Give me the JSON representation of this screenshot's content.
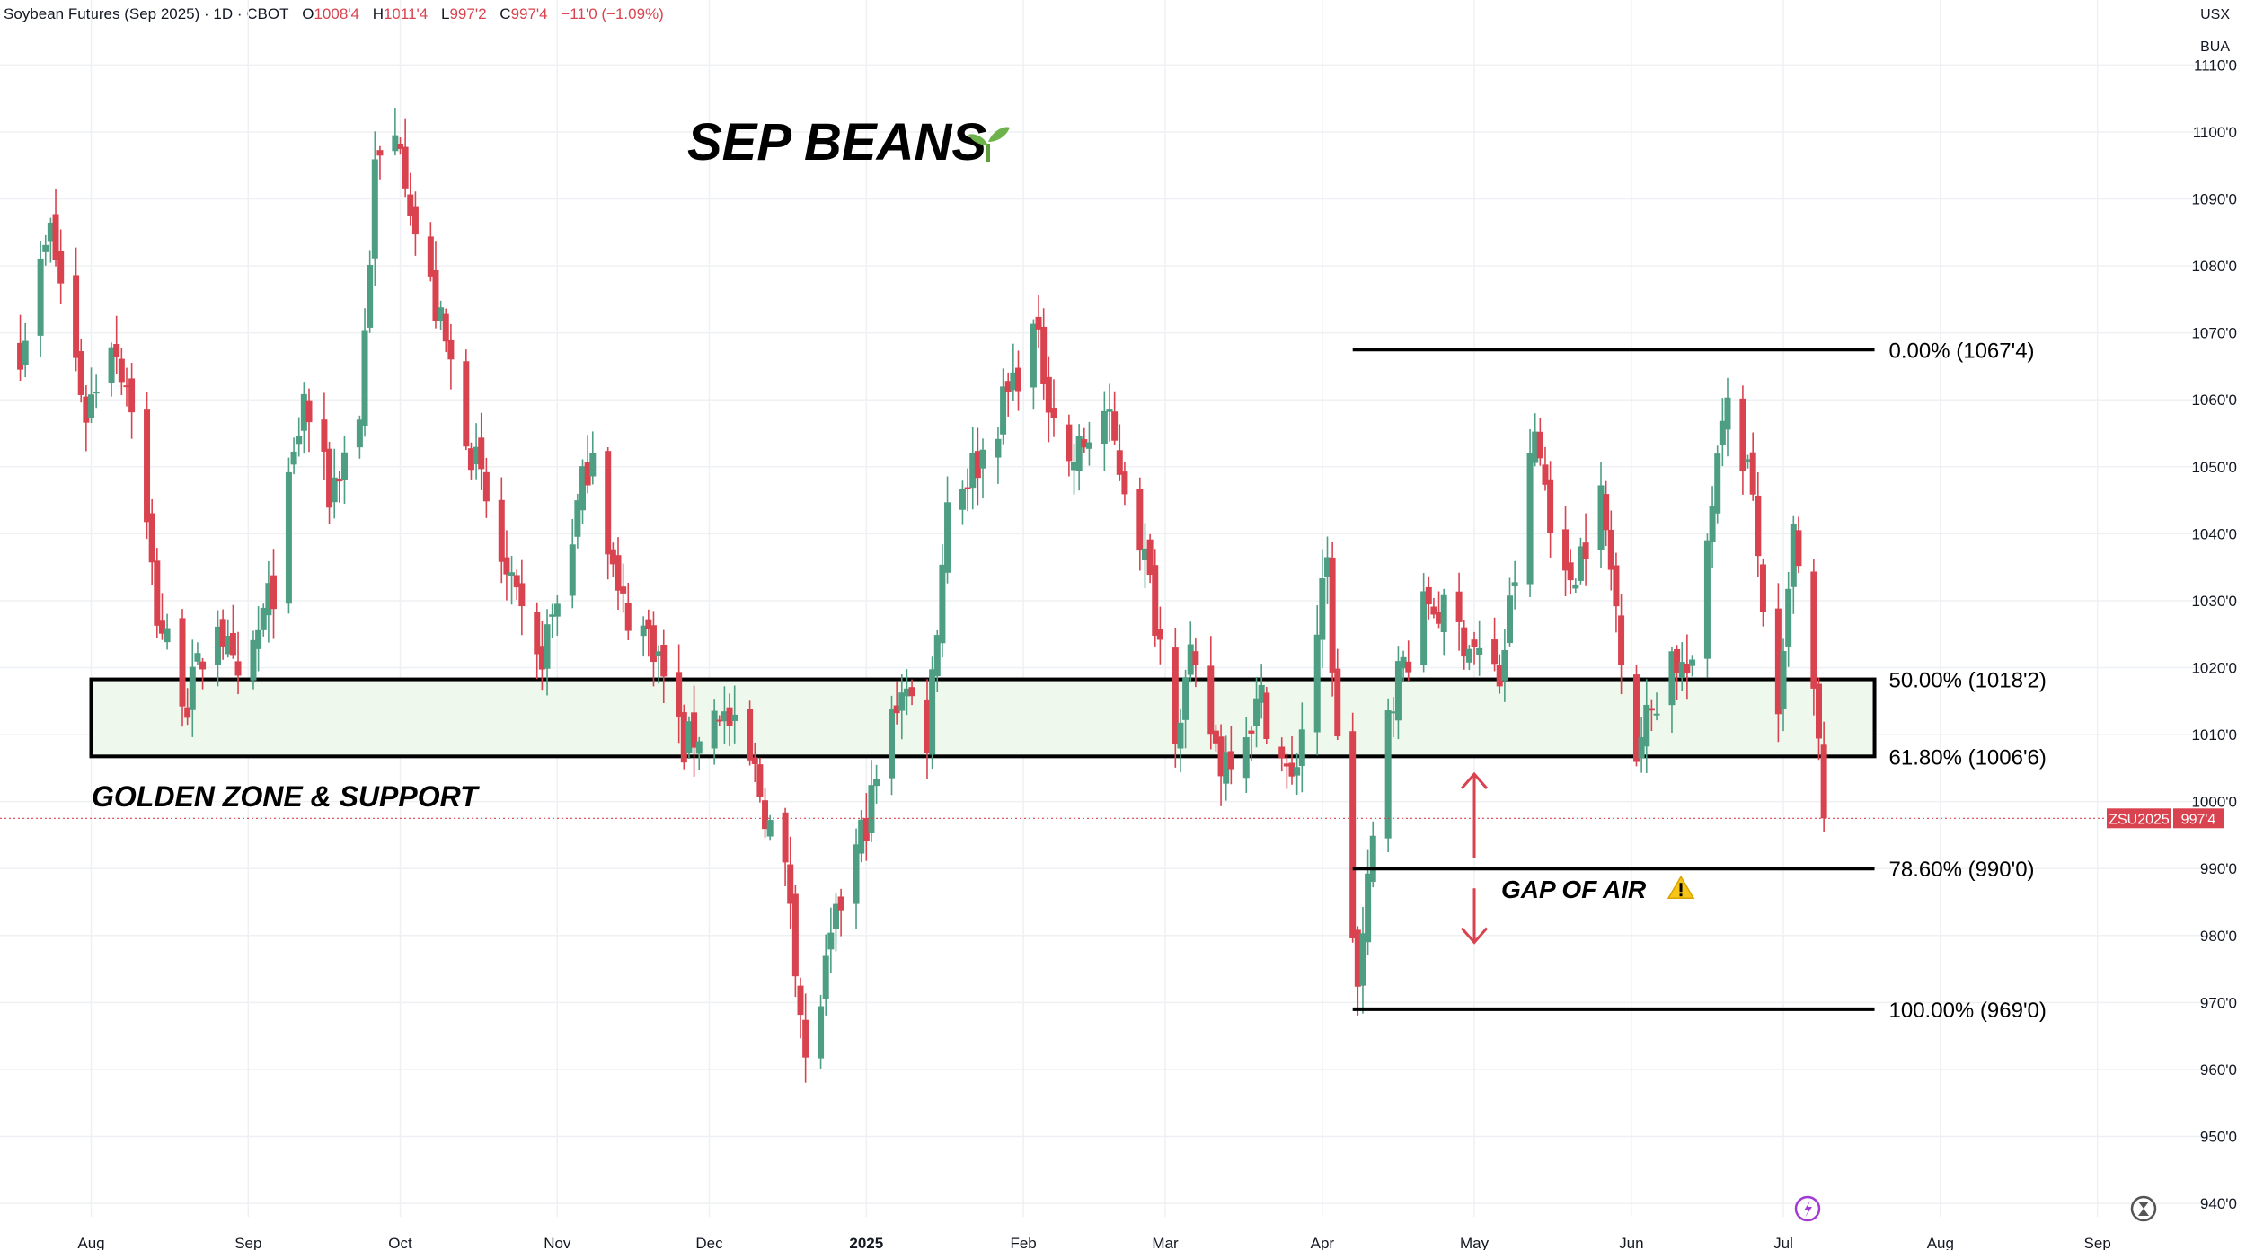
{
  "header": {
    "instrument": "Soybean Futures (Sep 2025) · 1D · CBOT",
    "ohlc": [
      {
        "key": "O",
        "value": "1008'4"
      },
      {
        "key": "H",
        "value": "1011'4"
      },
      {
        "key": "L",
        "value": "997'2"
      },
      {
        "key": "C",
        "value": "997'4"
      }
    ],
    "change": "−11'0 (−1.09%)"
  },
  "currency": "USX",
  "unit": "BUA",
  "colors": {
    "up": "#4e9e84",
    "down": "#d9434f",
    "zone": "#eef8ec",
    "text": "#131722"
  },
  "chart_data": {
    "type": "candlestick",
    "title": "SEP BEANS",
    "title_icon": "seedling-icon",
    "ylim": [
      938,
      1113
    ],
    "y_ticks": [
      "940'0",
      "950'0",
      "960'0",
      "970'0",
      "980'0",
      "990'0",
      "1000'0",
      "1010'0",
      "1020'0",
      "1030'0",
      "1040'0",
      "1050'0",
      "1060'0",
      "1070'0",
      "1080'0",
      "1090'0",
      "1100'0",
      "1110'0"
    ],
    "y_tick_values": [
      940,
      950,
      960,
      970,
      980,
      990,
      1000,
      1010,
      1020,
      1030,
      1040,
      1050,
      1060,
      1070,
      1080,
      1090,
      1100,
      1110
    ],
    "x_ticks": [
      "Aug",
      "Sep",
      "Oct",
      "Nov",
      "Dec",
      "2025",
      "Feb",
      "Mar",
      "Apr",
      "May",
      "Jun",
      "Jul",
      "Aug",
      "Sep"
    ],
    "x_tick_dates": [
      "2024-08-01",
      "2024-09-01",
      "2024-10-01",
      "2024-11-01",
      "2024-12-01",
      "2025-01-01",
      "2025-02-01",
      "2025-03-01",
      "2025-04-01",
      "2025-05-01",
      "2025-06-01",
      "2025-07-01",
      "2025-08-01",
      "2025-09-01"
    ],
    "last_price": {
      "symbol": "ZSU2025",
      "value": "997'4",
      "price": 997.5
    },
    "fib_levels": [
      {
        "label": "0.00% (1067'4)",
        "price": 1067.5
      },
      {
        "label": "50.00% (1018'2)",
        "price": 1018.25
      },
      {
        "label": "61.80% (1006'6)",
        "price": 1006.75
      },
      {
        "label": "78.60% (990'0)",
        "price": 990.0
      },
      {
        "label": "100.00% (969'0)",
        "price": 969.0
      }
    ],
    "fib_start_date": "2025-04-07",
    "annotations": {
      "zone_label": "GOLDEN ZONE & SUPPORT",
      "zone_top": 1018.25,
      "zone_bottom": 1006.75,
      "zone_start_date": "2024-08-01",
      "gap_label": "GAP OF AIR",
      "gap_icon": "warning-icon",
      "gap_arrow_date": "2025-05-01",
      "gap_upper": 1002.5,
      "gap_lower": 979.5
    },
    "levels_end_date": "2025-07-19",
    "waypoints": [
      {
        "date": "2024-07-18",
        "price": 1068
      },
      {
        "date": "2024-07-24",
        "price": 1085
      },
      {
        "date": "2024-07-31",
        "price": 1058
      },
      {
        "date": "2024-08-05",
        "price": 1070
      },
      {
        "date": "2024-08-09",
        "price": 1060
      },
      {
        "date": "2024-08-14",
        "price": 1028
      },
      {
        "date": "2024-08-20",
        "price": 1015
      },
      {
        "date": "2024-08-26",
        "price": 1028
      },
      {
        "date": "2024-08-30",
        "price": 1016
      },
      {
        "date": "2024-09-06",
        "price": 1032
      },
      {
        "date": "2024-09-12",
        "price": 1060
      },
      {
        "date": "2024-09-17",
        "price": 1046
      },
      {
        "date": "2024-09-23",
        "price": 1058
      },
      {
        "date": "2024-09-26",
        "price": 1094
      },
      {
        "date": "2024-10-01",
        "price": 1100
      },
      {
        "date": "2024-10-04",
        "price": 1085
      },
      {
        "date": "2024-10-10",
        "price": 1068
      },
      {
        "date": "2024-10-16",
        "price": 1050
      },
      {
        "date": "2024-10-22",
        "price": 1033
      },
      {
        "date": "2024-10-28",
        "price": 1020
      },
      {
        "date": "2024-11-01",
        "price": 1030
      },
      {
        "date": "2024-11-08",
        "price": 1054
      },
      {
        "date": "2024-11-13",
        "price": 1030
      },
      {
        "date": "2024-11-20",
        "price": 1024
      },
      {
        "date": "2024-11-26",
        "price": 1008
      },
      {
        "date": "2024-12-03",
        "price": 1014
      },
      {
        "date": "2024-12-10",
        "price": 1004
      },
      {
        "date": "2024-12-17",
        "price": 986
      },
      {
        "date": "2024-12-20",
        "price": 960
      },
      {
        "date": "2024-12-27",
        "price": 985
      },
      {
        "date": "2025-01-02",
        "price": 1000
      },
      {
        "date": "2025-01-08",
        "price": 1018
      },
      {
        "date": "2025-01-13",
        "price": 1010
      },
      {
        "date": "2025-01-17",
        "price": 1045
      },
      {
        "date": "2025-01-24",
        "price": 1052
      },
      {
        "date": "2025-02-03",
        "price": 1070
      },
      {
        "date": "2025-02-10",
        "price": 1050
      },
      {
        "date": "2025-02-17",
        "price": 1058
      },
      {
        "date": "2025-02-24",
        "price": 1040
      },
      {
        "date": "2025-03-03",
        "price": 1012
      },
      {
        "date": "2025-03-06",
        "price": 1020
      },
      {
        "date": "2025-03-12",
        "price": 1006
      },
      {
        "date": "2025-03-20",
        "price": 1015
      },
      {
        "date": "2025-03-26",
        "price": 1002
      },
      {
        "date": "2025-04-02",
        "price": 1035
      },
      {
        "date": "2025-04-04",
        "price": 1008
      },
      {
        "date": "2025-04-08",
        "price": 972
      },
      {
        "date": "2025-04-14",
        "price": 1015
      },
      {
        "date": "2025-04-22",
        "price": 1030
      },
      {
        "date": "2025-04-30",
        "price": 1024
      },
      {
        "date": "2025-05-06",
        "price": 1018
      },
      {
        "date": "2025-05-13",
        "price": 1055
      },
      {
        "date": "2025-05-19",
        "price": 1032
      },
      {
        "date": "2025-05-26",
        "price": 1045
      },
      {
        "date": "2025-06-02",
        "price": 1008
      },
      {
        "date": "2025-06-09",
        "price": 1022
      },
      {
        "date": "2025-06-13",
        "price": 1018
      },
      {
        "date": "2025-06-19",
        "price": 1060
      },
      {
        "date": "2025-06-24",
        "price": 1050
      },
      {
        "date": "2025-06-30",
        "price": 1010
      },
      {
        "date": "2025-07-03",
        "price": 1040
      },
      {
        "date": "2025-07-08",
        "price": 1008
      },
      {
        "date": "2025-07-09",
        "price": 997.5
      }
    ]
  }
}
